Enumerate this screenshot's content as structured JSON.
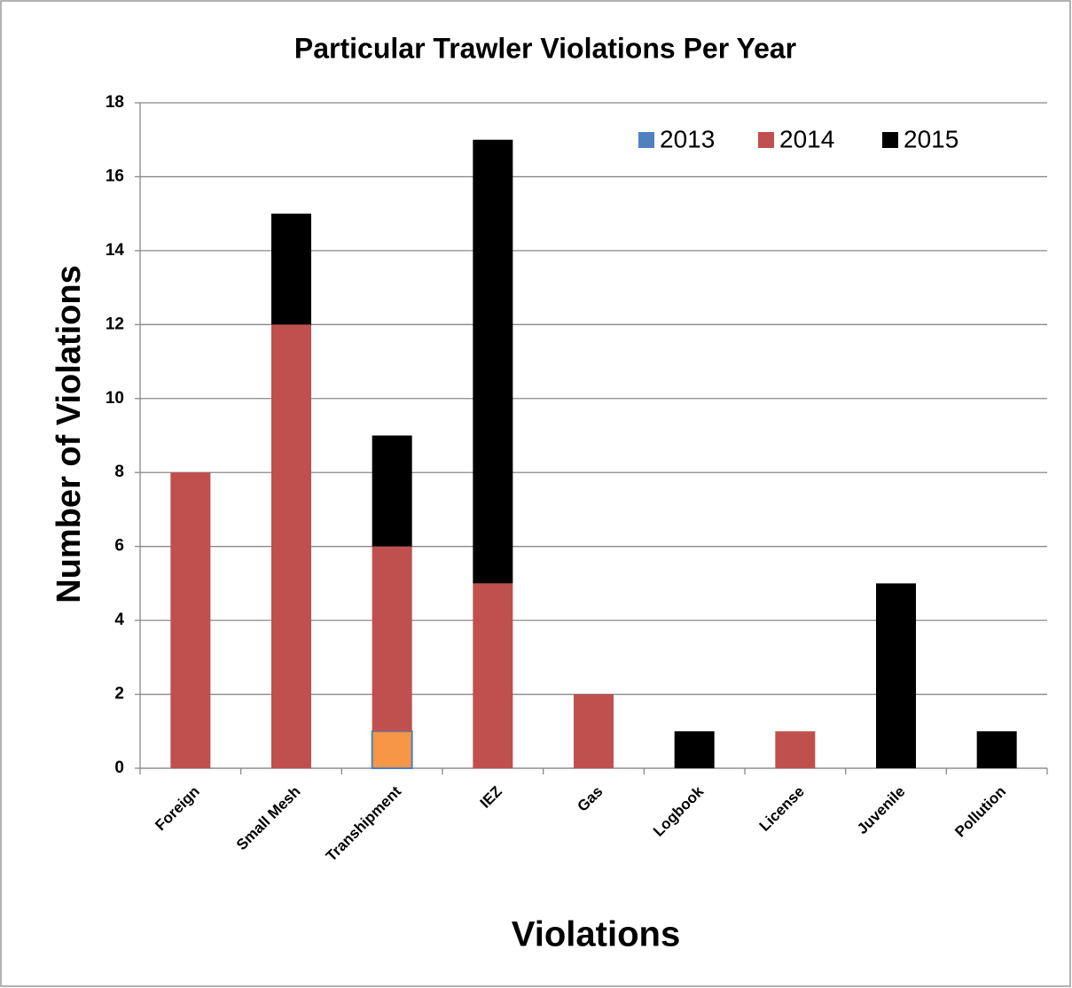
{
  "chart_data": {
    "type": "stacked_bar",
    "title": "Particular Trawler Violations Per Year",
    "x_label": "Violations",
    "y_label": "Number of Violations",
    "categories": [
      "Foreign",
      "Small Mesh",
      "Transhipment",
      "IEZ",
      "Gas",
      "Logbook",
      "License",
      "Juvenile",
      "Pollution"
    ],
    "series": [
      {
        "name": "2013",
        "color": "#4f81bd",
        "point_colors": [
          "#4f81bd",
          "#4f81bd",
          "#f79646",
          "#4f81bd",
          "#4f81bd",
          "#4f81bd",
          "#4f81bd",
          "#4f81bd",
          "#4f81bd"
        ],
        "values": [
          0,
          0,
          1,
          0,
          0,
          0,
          0,
          0,
          0
        ]
      },
      {
        "name": "2014",
        "color": "#c0504d",
        "values": [
          8,
          12,
          5,
          5,
          2,
          0,
          1,
          0,
          0
        ]
      },
      {
        "name": "2015",
        "color": "#000000",
        "values": [
          0,
          3,
          3,
          12,
          0,
          1,
          0,
          5,
          1
        ]
      }
    ],
    "ylim": [
      0,
      18
    ],
    "yticks": [
      0,
      2,
      4,
      6,
      8,
      10,
      12,
      14,
      16,
      18
    ],
    "grid": true,
    "legend": "top-right"
  }
}
